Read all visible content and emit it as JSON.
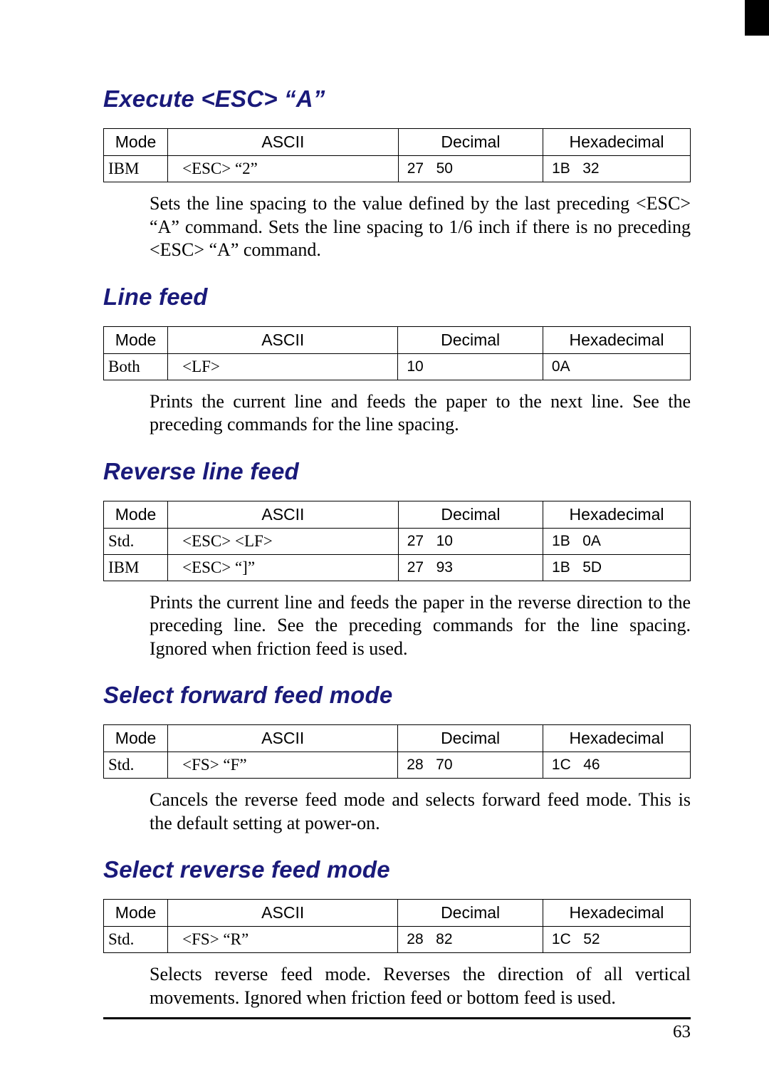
{
  "page_number": "63",
  "table_headers": {
    "mode": "Mode",
    "ascii": "ASCII",
    "decimal": "Decimal",
    "hex": "Hexadecimal"
  },
  "sections": [
    {
      "title": "Execute <ESC> “A”",
      "rows": [
        {
          "mode": "IBM",
          "ascii": "<ESC>   “2”",
          "dec": "27   50",
          "hex": "1B   32"
        }
      ],
      "desc": "Sets the line spacing to the value defined by the last preceding <ESC> “A” command. Sets the line spacing to 1/6 inch if there is no preceding <ESC> “A” command."
    },
    {
      "title": "Line feed",
      "rows": [
        {
          "mode": "Both",
          "ascii": "<LF>",
          "dec": "10",
          "hex": "0A"
        }
      ],
      "desc": "Prints the current line and feeds the paper to the next line. See the preceding commands for the line spacing."
    },
    {
      "title": "Reverse line feed",
      "rows": [
        {
          "mode": "Std.",
          "ascii": "<ESC> <LF>",
          "dec": "27   10",
          "hex": "1B   0A"
        },
        {
          "mode": "IBM",
          "ascii": "<ESC>   “]”",
          "dec": "27   93",
          "hex": "1B   5D"
        }
      ],
      "desc": "Prints the current line and feeds the paper in the reverse direction to the preceding line. See the preceding commands for the line spacing. Ignored when friction feed is used."
    },
    {
      "title": "Select forward feed mode",
      "rows": [
        {
          "mode": "Std.",
          "ascii": "<FS>    “F”",
          "dec": "28   70",
          "hex": "1C   46"
        }
      ],
      "desc": "Cancels the reverse feed mode and selects forward feed mode. This is the default setting at power-on."
    },
    {
      "title": "Select reverse feed mode",
      "rows": [
        {
          "mode": "Std.",
          "ascii": "<FS>    “R”",
          "dec": "28   82",
          "hex": "1C   52"
        }
      ],
      "desc": "Selects reverse feed mode. Reverses the direction of all vertical movements. Ignored when  friction feed or bottom feed is used."
    }
  ]
}
